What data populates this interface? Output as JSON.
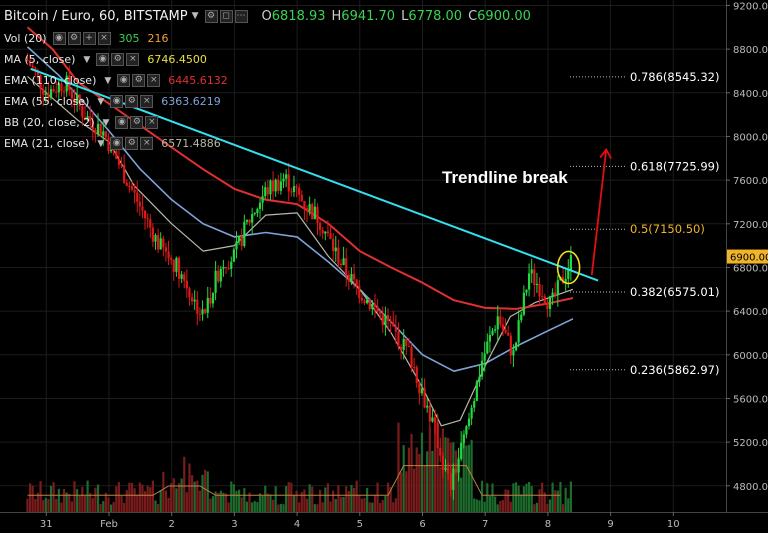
{
  "header": {
    "symbol": "Bitcoin / Euro, 60, BITSTAMP",
    "ohlc": [
      {
        "k": "O",
        "v": "6818.93"
      },
      {
        "k": "H",
        "v": "6941.70"
      },
      {
        "k": "L",
        "v": "6778.00"
      },
      {
        "k": "C",
        "v": "6900.00"
      }
    ]
  },
  "indicators": [
    {
      "label": "Vol (20)",
      "values": [
        {
          "text": "305",
          "color": "#39d353"
        },
        {
          "text": "216",
          "color": "#f0a030"
        }
      ]
    },
    {
      "label": "MA (5, close)",
      "values": [
        {
          "text": "6746.4500",
          "color": "#e8e040"
        }
      ]
    },
    {
      "label": "EMA (110, close)",
      "values": [
        {
          "text": "6445.6132",
          "color": "#e03030"
        }
      ]
    },
    {
      "label": "EMA (55, close)",
      "values": [
        {
          "text": "6363.6219",
          "color": "#7fa3d8"
        }
      ]
    },
    {
      "label": "BB (20, close, 2)",
      "values": []
    },
    {
      "label": "EMA (21, close)",
      "values": [
        {
          "text": "6571.4886",
          "color": "#b8b8a8"
        }
      ]
    }
  ],
  "annotation": "Trendline break",
  "chart_data": {
    "type": "candlestick",
    "x_ticks": [
      {
        "label": "31",
        "day": -1
      },
      {
        "label": "Feb",
        "day": 0
      },
      {
        "label": "2",
        "day": 1
      },
      {
        "label": "3",
        "day": 2
      },
      {
        "label": "4",
        "day": 3
      },
      {
        "label": "5",
        "day": 4
      },
      {
        "label": "6",
        "day": 5
      },
      {
        "label": "7",
        "day": 6
      },
      {
        "label": "8",
        "day": 7
      },
      {
        "label": "9",
        "day": 8
      },
      {
        "label": "10",
        "day": 9
      }
    ],
    "y_ticks": [
      4800,
      5200,
      5600,
      6000,
      6400,
      6800,
      7200,
      7600,
      8000,
      8400,
      8800,
      9200
    ],
    "ylim": [
      4560,
      9250
    ],
    "last_price": "6900.00",
    "fib_levels": [
      {
        "label": "0.786(8545.32)",
        "value": 8545.32,
        "color": "#ffffff"
      },
      {
        "label": "0.618(7725.99)",
        "value": 7725.99,
        "color": "#ffffff"
      },
      {
        "label": "0.5(7150.50)",
        "value": 7150.5,
        "color": "#f0b429"
      },
      {
        "label": "0.382(6575.01)",
        "value": 6575.01,
        "color": "#ffffff"
      },
      {
        "label": "0.236(5862.97)",
        "value": 5862.97,
        "color": "#ffffff"
      }
    ],
    "trendline": [
      {
        "day": -1.25,
        "price": 8620
      },
      {
        "day": 7.8,
        "price": 6680
      }
    ],
    "ema110": [
      [
        -1.3,
        9000
      ],
      [
        -0.9,
        8800
      ],
      [
        -0.5,
        8500
      ],
      [
        0,
        8300
      ],
      [
        0.5,
        8100
      ],
      [
        1,
        7900
      ],
      [
        1.5,
        7700
      ],
      [
        2,
        7520
      ],
      [
        2.5,
        7420
      ],
      [
        3,
        7380
      ],
      [
        3.5,
        7200
      ],
      [
        4,
        6950
      ],
      [
        4.5,
        6800
      ],
      [
        5,
        6660
      ],
      [
        5.5,
        6500
      ],
      [
        6,
        6430
      ],
      [
        6.5,
        6420
      ],
      [
        7,
        6470
      ],
      [
        7.4,
        6520
      ]
    ],
    "ema55": [
      [
        -1.3,
        8820
      ],
      [
        -0.8,
        8560
      ],
      [
        -0.3,
        8250
      ],
      [
        0,
        8050
      ],
      [
        0.5,
        7700
      ],
      [
        1,
        7420
      ],
      [
        1.5,
        7200
      ],
      [
        2,
        7080
      ],
      [
        2.5,
        7120
      ],
      [
        3,
        7080
      ],
      [
        3.5,
        6850
      ],
      [
        4,
        6600
      ],
      [
        4.5,
        6300
      ],
      [
        5,
        6000
      ],
      [
        5.5,
        5850
      ],
      [
        6,
        5920
      ],
      [
        6.5,
        6080
      ],
      [
        7,
        6220
      ],
      [
        7.4,
        6330
      ]
    ],
    "ema21": [
      [
        -1.3,
        8550
      ],
      [
        -0.9,
        8350
      ],
      [
        -0.5,
        8150
      ],
      [
        0,
        7950
      ],
      [
        0.4,
        7550
      ],
      [
        1,
        7200
      ],
      [
        1.5,
        6950
      ],
      [
        2,
        7000
      ],
      [
        2.5,
        7280
      ],
      [
        3,
        7300
      ],
      [
        3.5,
        6900
      ],
      [
        4,
        6600
      ],
      [
        4.5,
        6200
      ],
      [
        5,
        5700
      ],
      [
        5.3,
        5350
      ],
      [
        5.6,
        5400
      ],
      [
        6,
        5900
      ],
      [
        6.4,
        6350
      ],
      [
        6.8,
        6480
      ],
      [
        7.4,
        6600
      ]
    ],
    "closes": [
      [
        -1.3,
        8700
      ],
      [
        -1.0,
        8400
      ],
      [
        -0.7,
        8500
      ],
      [
        -0.4,
        8200
      ],
      [
        -0.1,
        8050
      ],
      [
        0.2,
        7700
      ],
      [
        0.5,
        7350
      ],
      [
        0.8,
        7000
      ],
      [
        1.1,
        6800
      ],
      [
        1.35,
        6500
      ],
      [
        1.5,
        6350
      ],
      [
        1.8,
        6850
      ],
      [
        2.0,
        6900
      ],
      [
        2.2,
        7200
      ],
      [
        2.5,
        7500
      ],
      [
        2.8,
        7620
      ],
      [
        3.1,
        7400
      ],
      [
        3.35,
        7250
      ],
      [
        3.6,
        6950
      ],
      [
        3.9,
        6650
      ],
      [
        4.2,
        6450
      ],
      [
        4.5,
        6250
      ],
      [
        4.8,
        6000
      ],
      [
        5.0,
        5650
      ],
      [
        5.2,
        5300
      ],
      [
        5.35,
        4950
      ],
      [
        5.45,
        4800
      ],
      [
        5.7,
        5300
      ],
      [
        5.95,
        5950
      ],
      [
        6.2,
        6350
      ],
      [
        6.45,
        6000
      ],
      [
        6.7,
        6750
      ],
      [
        6.9,
        6600
      ],
      [
        7.05,
        6450
      ],
      [
        7.2,
        6650
      ],
      [
        7.4,
        6900
      ]
    ],
    "volume_ylim": [
      0,
      1400
    ]
  }
}
